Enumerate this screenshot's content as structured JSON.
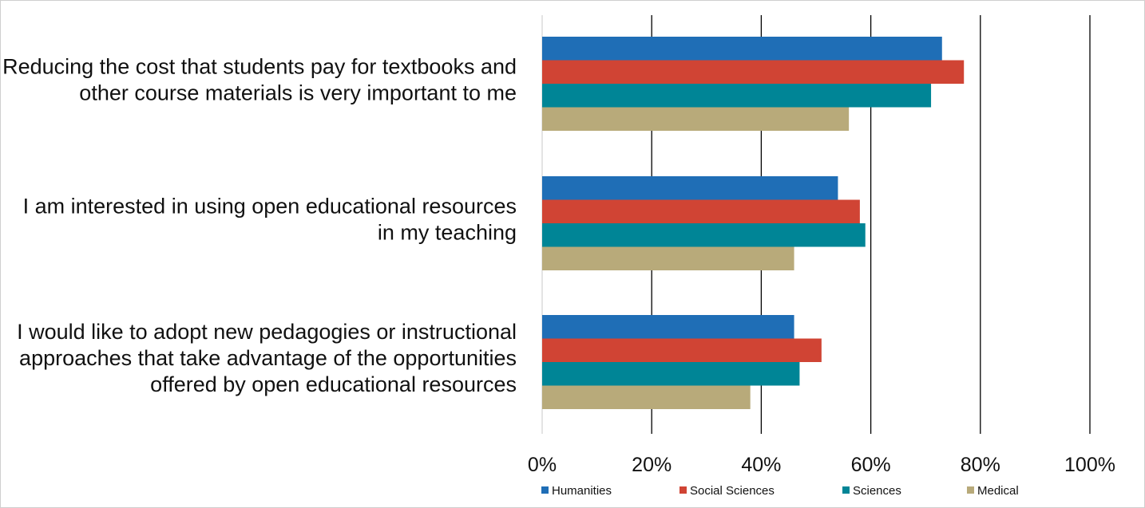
{
  "chart_data": {
    "type": "bar",
    "orientation": "horizontal",
    "categories": [
      [
        "Reducing the cost that students pay for textbooks and",
        "other course materials is very important to me"
      ],
      [
        "I am interested in using open educational resources",
        "in my teaching"
      ],
      [
        "I would like to adopt new pedagogies or instructional",
        "approaches that take advantage of the opportunities",
        "offered by open educational resources"
      ]
    ],
    "series": [
      {
        "name": "Humanities",
        "color": "#1f6eb6",
        "values": [
          73,
          54,
          46
        ]
      },
      {
        "name": "Social Sciences",
        "color": "#d04434",
        "values": [
          77,
          58,
          51
        ]
      },
      {
        "name": "Sciences",
        "color": "#008596",
        "values": [
          71,
          59,
          47
        ]
      },
      {
        "name": "Medical",
        "color": "#b8aa7a",
        "values": [
          56,
          46,
          38
        ]
      }
    ],
    "xlim": [
      0,
      100
    ],
    "xticks": [
      "0%",
      "20%",
      "40%",
      "60%",
      "80%",
      "100%"
    ],
    "grid": true,
    "legend_position": "bottom",
    "title": "",
    "xlabel": "",
    "ylabel": ""
  }
}
